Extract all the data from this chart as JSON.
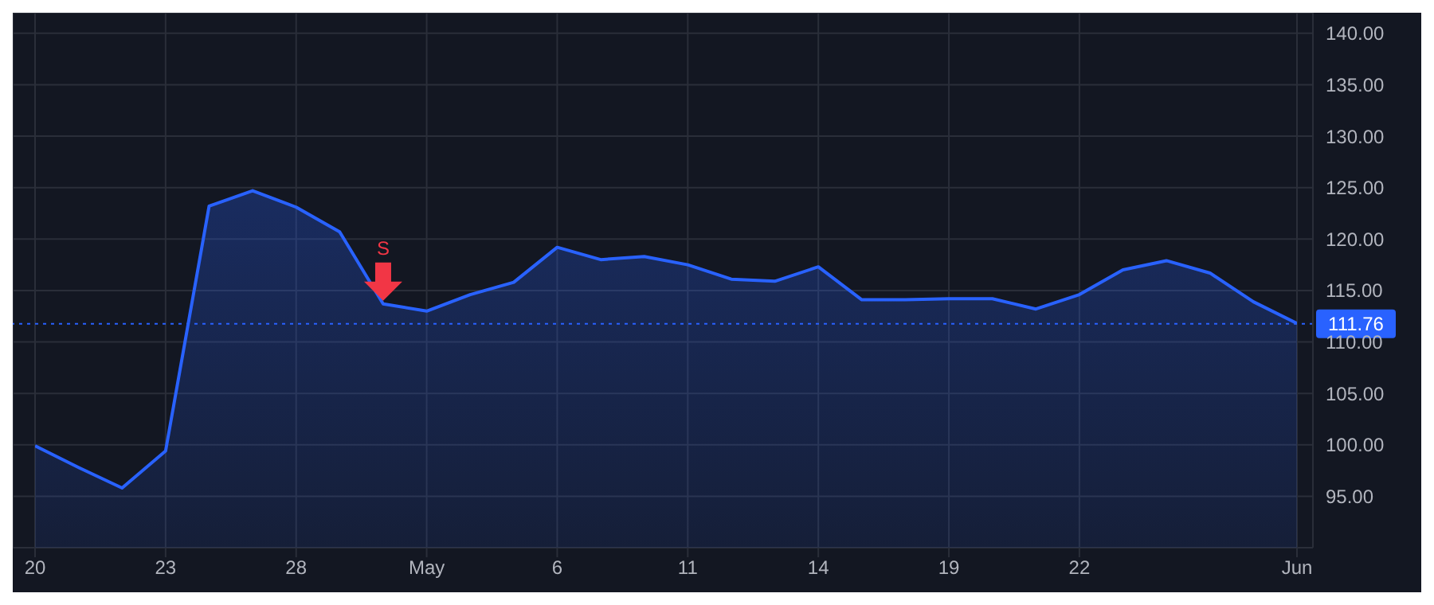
{
  "chart_data": {
    "type": "area",
    "categories": [
      "20",
      null,
      null,
      "23",
      null,
      null,
      "28",
      null,
      null,
      "May",
      null,
      null,
      "6",
      null,
      null,
      "11",
      null,
      null,
      "14",
      null,
      null,
      "19",
      null,
      null,
      "22",
      null,
      null,
      null,
      null,
      "Jun"
    ],
    "series": [
      {
        "color": "#2962ff",
        "values": [
          99.9,
          97.8,
          95.8,
          99.4,
          123.2,
          124.7,
          123.1,
          120.7,
          113.7,
          113.0,
          114.6,
          115.8,
          119.2,
          118.0,
          118.3,
          117.5,
          116.1,
          115.9,
          117.3,
          114.1,
          114.1,
          114.2,
          114.2,
          113.2,
          114.6,
          117.0,
          117.9,
          116.7,
          113.9,
          111.8
        ]
      }
    ],
    "ylim": [
      90,
      142
    ],
    "yticks": [
      {
        "value": 95,
        "label": "95.00"
      },
      {
        "value": 100,
        "label": "100.00"
      },
      {
        "value": 105,
        "label": "105.00"
      },
      {
        "value": 110,
        "label": "110.00"
      },
      {
        "value": 115,
        "label": "115.00"
      },
      {
        "value": 120,
        "label": "120.00"
      },
      {
        "value": 125,
        "label": "125.00"
      },
      {
        "value": 130,
        "label": "130.00"
      },
      {
        "value": 135,
        "label": "135.00"
      },
      {
        "value": 140,
        "label": "140.00"
      }
    ],
    "ref_lines": [
      {
        "axis": "y",
        "value": 111.76,
        "label": "111.76",
        "color": "#2962ff",
        "line_style": "dotted"
      }
    ],
    "annotations": [
      {
        "text": "S",
        "y": 113.7
      }
    ],
    "grid": true,
    "legend": false,
    "marker": "none",
    "line_style": "solid"
  }
}
